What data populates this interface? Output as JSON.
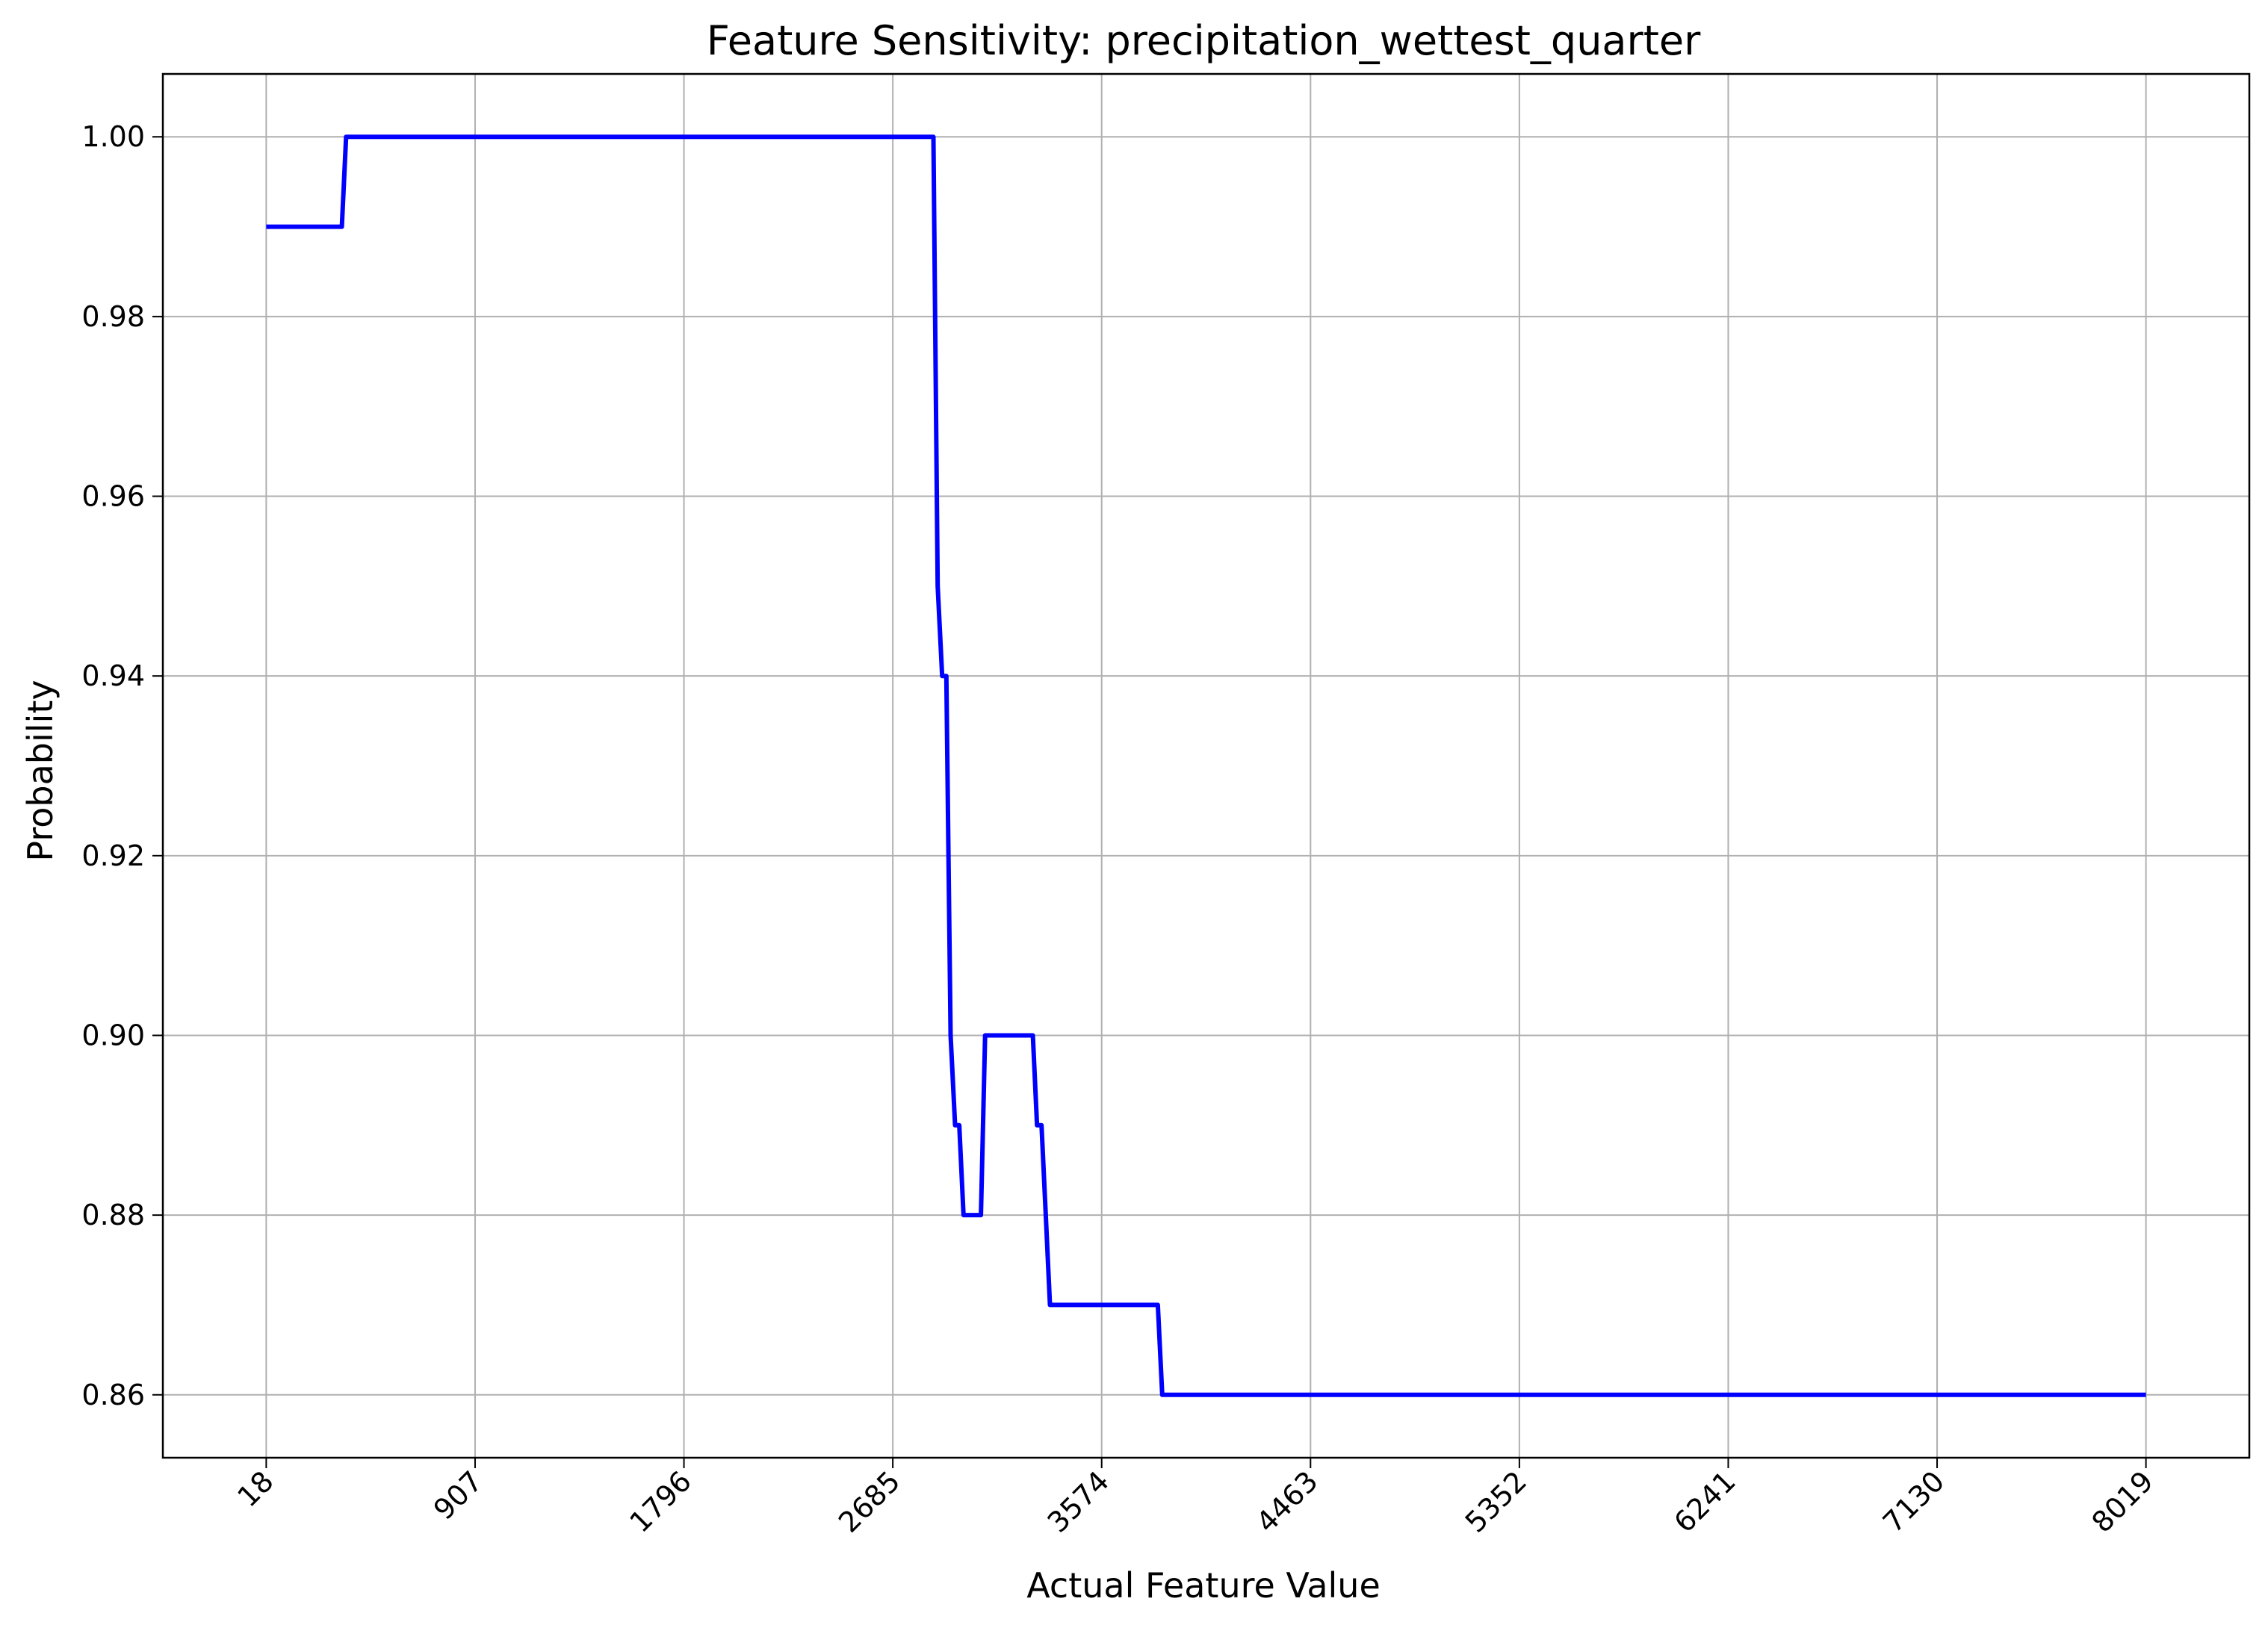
{
  "chart_data": {
    "type": "line",
    "title": "Feature Sensitivity: precipitation_wettest_quarter",
    "xlabel": "Actual Feature Value",
    "ylabel": "Probability",
    "xlim": [
      -422,
      8459
    ],
    "ylim": [
      0.853,
      1.007
    ],
    "x_ticks": [
      18,
      907,
      1796,
      2685,
      3574,
      4463,
      5352,
      6241,
      7130,
      8019
    ],
    "x_tick_labels": [
      "18",
      "907",
      "1796",
      "2685",
      "3574",
      "4463",
      "5352",
      "6241",
      "7130",
      "8019"
    ],
    "y_ticks": [
      0.86,
      0.88,
      0.9,
      0.92,
      0.94,
      0.96,
      0.98,
      1.0
    ],
    "y_tick_labels": [
      "0.86",
      "0.88",
      "0.90",
      "0.92",
      "0.94",
      "0.96",
      "0.98",
      "1.00"
    ],
    "grid": true,
    "series": [
      {
        "color": "#0000ff",
        "x": [
          18,
          340,
          358,
          2858,
          2876,
          2895,
          2913,
          2931,
          2950,
          2968,
          2986,
          3005,
          3023,
          3041,
          3060,
          3078,
          3096,
          3115,
          3281,
          3299,
          3318,
          3336,
          3354,
          3373,
          3391,
          3813,
          3832,
          3850,
          8019
        ],
        "y": [
          0.99,
          0.99,
          1.0,
          1.0,
          0.95,
          0.94,
          0.94,
          0.9,
          0.89,
          0.89,
          0.88,
          0.88,
          0.88,
          0.88,
          0.88,
          0.9,
          0.9,
          0.9,
          0.9,
          0.89,
          0.89,
          0.88,
          0.87,
          0.87,
          0.87,
          0.87,
          0.86,
          0.86,
          0.86
        ]
      }
    ]
  }
}
